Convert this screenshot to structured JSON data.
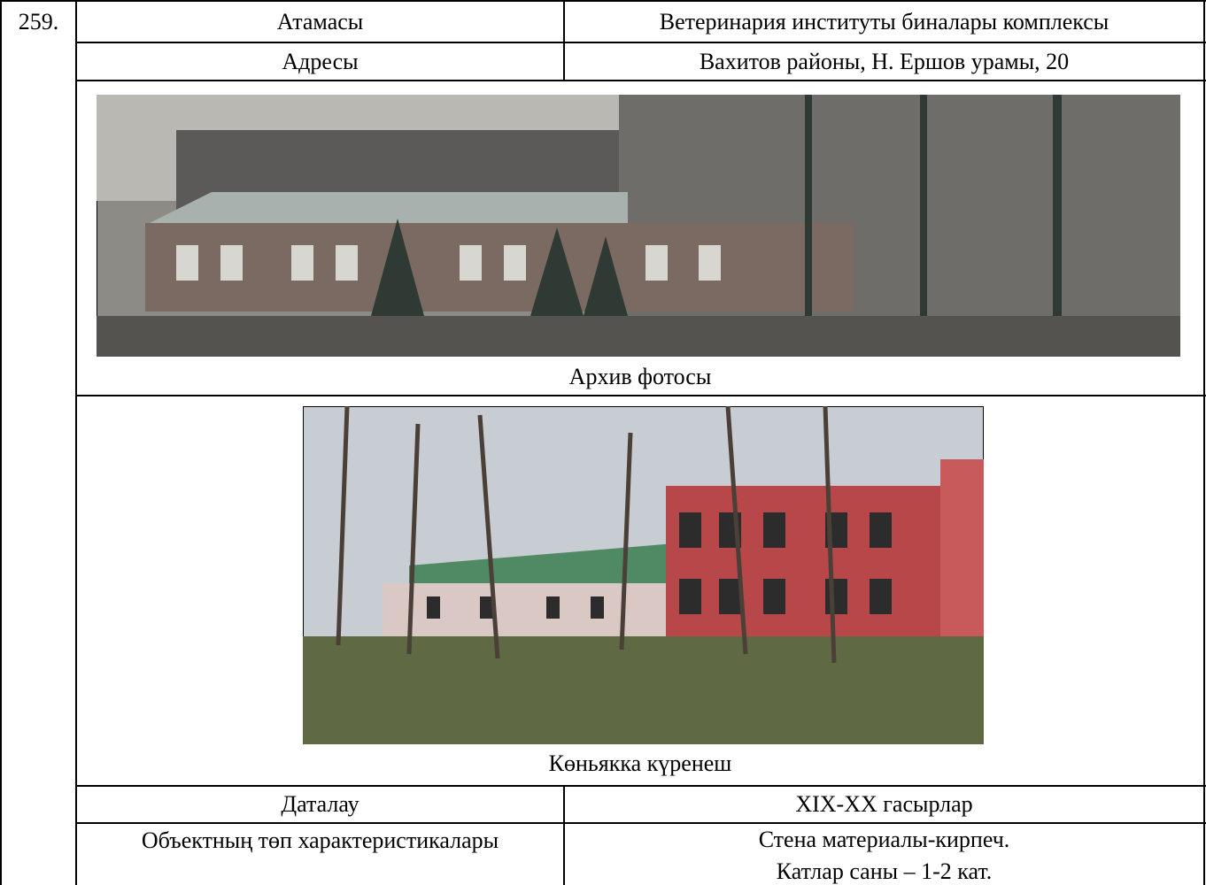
{
  "number": "259.",
  "table": {
    "rows": [
      [
        "Атамасы",
        "Ветеринария институты биналары комплексы"
      ],
      [
        "Адресы",
        "Вахитов районы, Н. Ершов урамы, 20"
      ]
    ]
  },
  "photos": [
    {
      "caption": "Архив фотосы"
    },
    {
      "caption": "Көньякка күренеш"
    }
  ],
  "details": {
    "rows": [
      [
        "Даталау",
        "XIX-XX гасырлар"
      ],
      [
        "Объектның төп характеристикалары",
        [
          "Стена материалы-кирпеч.",
          "Катлар саны – 1-2 кат."
        ]
      ]
    ]
  }
}
